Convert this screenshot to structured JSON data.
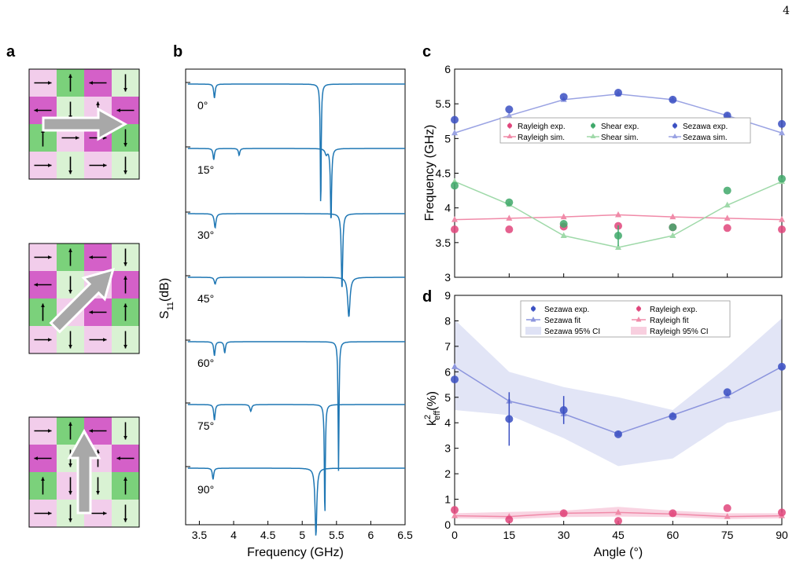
{
  "page_number": "4",
  "panel_labels": [
    "a",
    "b",
    "c",
    "d"
  ],
  "panel_a": {
    "colors": {
      "magenta": "#d460c8",
      "light_pink": "#f2cdeb",
      "green": "#7bd17b",
      "light_green": "#d9f2d3",
      "arrow_fill": "#a8a8a8"
    },
    "grids": [
      {
        "cells": [
          [
            "light_pink",
            "green",
            "magenta",
            "light_green"
          ],
          [
            "magenta",
            "light_green",
            "light_pink",
            "magenta"
          ],
          [
            "green",
            "light_pink",
            "magenta",
            "green"
          ],
          [
            "light_pink",
            "light_green",
            "light_pink",
            "light_green"
          ]
        ],
        "arrows": [
          [
            "right",
            "up",
            "left",
            "down"
          ],
          [
            "left",
            "down",
            "up",
            "left"
          ],
          [
            "up",
            "right",
            "right",
            "down"
          ],
          [
            "right",
            "down",
            "right",
            "down"
          ]
        ],
        "big_arrow_angle_deg": 0
      },
      {
        "cells": [
          [
            "light_pink",
            "green",
            "magenta",
            "light_green"
          ],
          [
            "magenta",
            "light_green",
            "light_pink",
            "magenta"
          ],
          [
            "green",
            "light_pink",
            "magenta",
            "green"
          ],
          [
            "light_pink",
            "light_green",
            "light_pink",
            "light_green"
          ]
        ],
        "arrows": [
          [
            "right",
            "up",
            "left",
            "down"
          ],
          [
            "left",
            "down",
            "right",
            "up"
          ],
          [
            "up",
            "left",
            "left",
            "up"
          ],
          [
            "right",
            "down",
            "right",
            "down"
          ]
        ],
        "big_arrow_angle_deg": 45
      },
      {
        "cells": [
          [
            "light_pink",
            "green",
            "magenta",
            "light_green"
          ],
          [
            "magenta",
            "light_green",
            "light_pink",
            "magenta"
          ],
          [
            "green",
            "light_pink",
            "light_green",
            "green"
          ],
          [
            "light_pink",
            "light_green",
            "light_pink",
            "light_green"
          ]
        ],
        "arrows": [
          [
            "right",
            "up",
            "left",
            "down"
          ],
          [
            "left",
            "down",
            "up",
            "left"
          ],
          [
            "up",
            "down",
            "down",
            "up"
          ],
          [
            "right",
            "down",
            "right",
            "down"
          ]
        ],
        "big_arrow_angle_deg": 90
      }
    ]
  },
  "chart_data": [
    {
      "panel": "b",
      "type": "line",
      "xlabel": "Frequency (GHz)",
      "ylabel": "S",
      "ylabel_sub": "11",
      "ylabel_rest": "(dB)",
      "xlim": [
        3.3,
        6.5
      ],
      "xticks": [
        "3.5",
        "4",
        "4.5",
        "5",
        "5.5",
        "6",
        "6.5"
      ],
      "xtick_values": [
        3.5,
        4.0,
        4.5,
        5.0,
        5.5,
        6.0,
        6.5
      ],
      "color": "#1f77b4",
      "series": [
        {
          "name": "0°",
          "dips": [
            [
              3.72,
              0.25,
              0.012
            ],
            [
              5.27,
              2.2,
              0.008
            ]
          ]
        },
        {
          "name": "15°",
          "dips": [
            [
              3.71,
              0.2,
              0.012
            ],
            [
              4.08,
              0.12,
              0.012
            ],
            [
              5.35,
              0.1,
              0.02
            ],
            [
              5.42,
              1.3,
              0.01
            ]
          ]
        },
        {
          "name": "30°",
          "dips": [
            [
              3.73,
              0.25,
              0.015
            ],
            [
              5.58,
              1.35,
              0.012
            ]
          ]
        },
        {
          "name": "45°",
          "dips": [
            [
              3.73,
              0.12,
              0.015
            ],
            [
              5.68,
              0.7,
              0.02
            ]
          ]
        },
        {
          "name": "60°",
          "dips": [
            [
              3.72,
              0.25,
              0.012
            ],
            [
              3.87,
              0.2,
              0.012
            ],
            [
              5.53,
              2.3,
              0.008
            ]
          ]
        },
        {
          "name": "75°",
          "dips": [
            [
              3.72,
              0.28,
              0.012
            ],
            [
              4.25,
              0.12,
              0.015
            ],
            [
              5.33,
              2.0,
              0.008
            ]
          ]
        },
        {
          "name": "90°",
          "dips": [
            [
              3.7,
              0.2,
              0.012
            ],
            [
              5.2,
              1.2,
              0.015
            ]
          ]
        }
      ]
    },
    {
      "panel": "c",
      "type": "scatter",
      "xlabel": "",
      "ylabel": "Frequency (GHz)",
      "xlim": [
        0,
        90
      ],
      "ylim": [
        3,
        6
      ],
      "yticks": [
        "3",
        "3.5",
        "4",
        "4.5",
        "5",
        "5.5",
        "6"
      ],
      "ytick_values": [
        3,
        3.5,
        4,
        4.5,
        5,
        5.5,
        6
      ],
      "x": [
        0,
        15,
        30,
        45,
        60,
        75,
        90
      ],
      "legend": {
        "exp": [
          "Rayleigh exp.",
          "Shear exp.",
          "Sezawa exp."
        ],
        "sim": [
          "Rayleigh sim.",
          "Shear sim.",
          "Sezawa sim."
        ]
      },
      "series": [
        {
          "name": "Rayleigh",
          "color": "#e0457b",
          "line_color": "#f08aa8",
          "exp": [
            3.69,
            3.69,
            3.73,
            3.74,
            3.72,
            3.71,
            3.69
          ],
          "sim": [
            3.83,
            3.85,
            3.87,
            3.9,
            3.87,
            3.85,
            3.83
          ]
        },
        {
          "name": "Shear",
          "color": "#3fa86a",
          "line_color": "#9fd9a9",
          "exp": [
            4.32,
            4.08,
            3.77,
            3.6,
            3.72,
            4.25,
            4.42
          ],
          "sim": [
            4.38,
            4.05,
            3.6,
            3.43,
            3.6,
            4.04,
            4.38
          ],
          "err": [
            0,
            0,
            0,
            0.15,
            0,
            0,
            0
          ]
        },
        {
          "name": "Sezawa",
          "color": "#3a4fc2",
          "line_color": "#9aa3e3",
          "exp": [
            5.27,
            5.42,
            5.6,
            5.66,
            5.56,
            5.33,
            5.21
          ],
          "sim": [
            5.08,
            5.33,
            5.56,
            5.64,
            5.56,
            5.33,
            5.08
          ]
        }
      ]
    },
    {
      "panel": "d",
      "type": "scatter",
      "xlabel": "Angle (°)",
      "ylabel": "k",
      "ylabel_sub": "eff",
      "ylabel_sup": "2",
      "ylabel_rest": "(%)",
      "xlim": [
        0,
        90
      ],
      "ylim": [
        0,
        9
      ],
      "xticks": [
        "0",
        "15",
        "30",
        "45",
        "60",
        "75",
        "90"
      ],
      "yticks": [
        "0",
        "1",
        "2",
        "3",
        "4",
        "5",
        "6",
        "7",
        "8",
        "9"
      ],
      "ytick_values": [
        0,
        1,
        2,
        3,
        4,
        5,
        6,
        7,
        8,
        9
      ],
      "x": [
        0,
        15,
        30,
        45,
        60,
        75,
        90
      ],
      "legend": [
        "Sezawa exp.",
        "Rayleigh exp.",
        "Sezawa fit",
        "Rayleigh fit",
        "Sezawa 95% CI",
        "Rayleigh 95% CI"
      ],
      "series": [
        {
          "name": "Sezawa",
          "color": "#3a4fc2",
          "line_color": "#8c95dd",
          "band_color": "#dfe2f5",
          "exp": [
            5.7,
            4.15,
            4.5,
            3.55,
            4.25,
            5.2,
            6.2
          ],
          "err": [
            0,
            1.05,
            0.55,
            0,
            0,
            0,
            0
          ],
          "fit": [
            6.2,
            4.85,
            4.35,
            3.57,
            4.3,
            5.05,
            6.2
          ],
          "ci_low": [
            4.5,
            4.3,
            3.4,
            2.3,
            2.6,
            4.0,
            4.5
          ],
          "ci_high": [
            8.05,
            6.0,
            5.4,
            5.0,
            4.5,
            6.2,
            8.1
          ]
        },
        {
          "name": "Rayleigh",
          "color": "#e0457b",
          "line_color": "#f08aa8",
          "band_color": "#f8cfdf",
          "exp": [
            0.58,
            0.2,
            0.45,
            0.15,
            0.45,
            0.65,
            0.48
          ],
          "fit": [
            0.35,
            0.32,
            0.45,
            0.48,
            0.42,
            0.32,
            0.35
          ],
          "ci_low": [
            0.25,
            0.22,
            0.3,
            0.32,
            0.3,
            0.22,
            0.25
          ],
          "ci_high": [
            0.45,
            0.5,
            0.55,
            0.7,
            0.55,
            0.45,
            0.45
          ]
        }
      ]
    }
  ]
}
